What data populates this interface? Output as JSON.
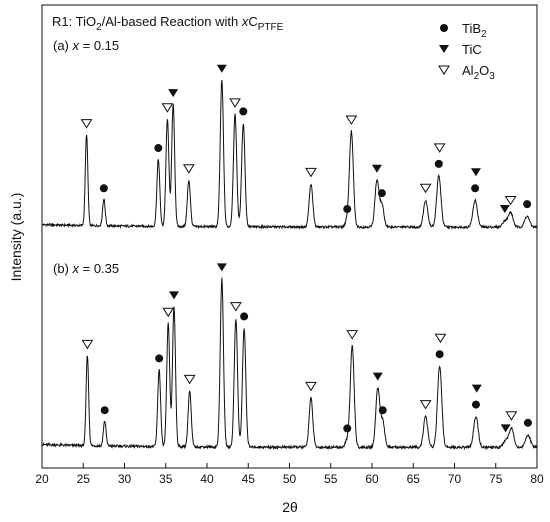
{
  "chart_data": {
    "type": "line",
    "title": {
      "prefix": "R1: TiO",
      "sub1": "2",
      "middle": "/Al-based Reaction with ",
      "var": "x",
      "c": "C",
      "sub2": "PTFE"
    },
    "xlabel": "2θ",
    "ylabel": "Intensity (a.u.)",
    "xlim": [
      20,
      80
    ],
    "xticks": [
      "20",
      "25",
      "30",
      "35",
      "40",
      "45",
      "50",
      "55",
      "60",
      "65",
      "70",
      "75",
      "80"
    ],
    "grid": false,
    "legend_placement": "top-right",
    "legend": [
      {
        "key": "TiB2",
        "marker": "filled-circle",
        "label": "TiB",
        "sub": "2"
      },
      {
        "key": "TiC",
        "marker": "filled-triangle-down",
        "label": "TiC",
        "sub": ""
      },
      {
        "key": "Al2O3",
        "marker": "open-triangle-down",
        "label": "Al",
        "sub": "2",
        "label2": "O",
        "sub2": "3"
      }
    ],
    "series": [
      {
        "name": "(a) x = 0.15",
        "label_prefix": "(a) ",
        "label_var": "x",
        "label_suffix": " = 0.15",
        "peaks": [
          {
            "x": 25.4,
            "h": 75,
            "phase": "Al2O3"
          },
          {
            "x": 27.5,
            "h": 22,
            "phase": "TiB2"
          },
          {
            "x": 34.1,
            "h": 55,
            "phase": "TiB2"
          },
          {
            "x": 35.2,
            "h": 88,
            "phase": "Al2O3"
          },
          {
            "x": 35.9,
            "h": 100,
            "phase": "TiC"
          },
          {
            "x": 37.8,
            "h": 38,
            "phase": "Al2O3"
          },
          {
            "x": 41.8,
            "h": 120,
            "phase": "TiC"
          },
          {
            "x": 43.4,
            "h": 92,
            "phase": "Al2O3"
          },
          {
            "x": 44.4,
            "h": 85,
            "phase": "TiB2"
          },
          {
            "x": 52.6,
            "h": 35,
            "phase": "Al2O3"
          },
          {
            "x": 57.0,
            "h": 5,
            "phase": "TiB2"
          },
          {
            "x": 57.5,
            "h": 78,
            "phase": "Al2O3"
          },
          {
            "x": 60.6,
            "h": 38,
            "phase": "TiC"
          },
          {
            "x": 61.2,
            "h": 18,
            "phase": "TiB2"
          },
          {
            "x": 66.5,
            "h": 22,
            "phase": "Al2O3"
          },
          {
            "x": 68.1,
            "h": 42,
            "phase": "TiB2"
          },
          {
            "x": 68.2,
            "h": 0,
            "phase": "Al2O3"
          },
          {
            "x": 72.5,
            "h": 22,
            "phase": "TiB2"
          },
          {
            "x": 72.6,
            "h": 0,
            "phase": "TiC"
          },
          {
            "x": 76.1,
            "h": 5,
            "phase": "TiC"
          },
          {
            "x": 76.8,
            "h": 12,
            "phase": "Al2O3"
          },
          {
            "x": 78.8,
            "h": 9,
            "phase": "TiB2"
          }
        ]
      },
      {
        "name": "(b) x = 0.35",
        "label_prefix": "(b) ",
        "label_var": "x",
        "label_suffix": " = 0.35",
        "peaks": [
          {
            "x": 25.5,
            "h": 65,
            "phase": "Al2O3"
          },
          {
            "x": 27.6,
            "h": 18,
            "phase": "TiB2"
          },
          {
            "x": 34.2,
            "h": 55,
            "phase": "TiB2"
          },
          {
            "x": 35.3,
            "h": 88,
            "phase": "Al2O3"
          },
          {
            "x": 36.0,
            "h": 100,
            "phase": "TiC"
          },
          {
            "x": 37.9,
            "h": 40,
            "phase": "Al2O3"
          },
          {
            "x": 41.8,
            "h": 120,
            "phase": "TiC"
          },
          {
            "x": 43.5,
            "h": 92,
            "phase": "Al2O3"
          },
          {
            "x": 44.5,
            "h": 85,
            "phase": "TiB2"
          },
          {
            "x": 52.6,
            "h": 35,
            "phase": "Al2O3"
          },
          {
            "x": 57.0,
            "h": 5,
            "phase": "TiB2"
          },
          {
            "x": 57.6,
            "h": 72,
            "phase": "Al2O3"
          },
          {
            "x": 60.7,
            "h": 42,
            "phase": "TiC"
          },
          {
            "x": 61.3,
            "h": 18,
            "phase": "TiB2"
          },
          {
            "x": 66.5,
            "h": 22,
            "phase": "Al2O3"
          },
          {
            "x": 68.2,
            "h": 58,
            "phase": "TiB2"
          },
          {
            "x": 68.3,
            "h": 0,
            "phase": "Al2O3"
          },
          {
            "x": 72.6,
            "h": 22,
            "phase": "TiB2"
          },
          {
            "x": 72.7,
            "h": 0,
            "phase": "TiC"
          },
          {
            "x": 76.2,
            "h": 5,
            "phase": "TiC"
          },
          {
            "x": 76.9,
            "h": 14,
            "phase": "Al2O3"
          },
          {
            "x": 78.9,
            "h": 9,
            "phase": "TiB2"
          }
        ]
      }
    ]
  }
}
